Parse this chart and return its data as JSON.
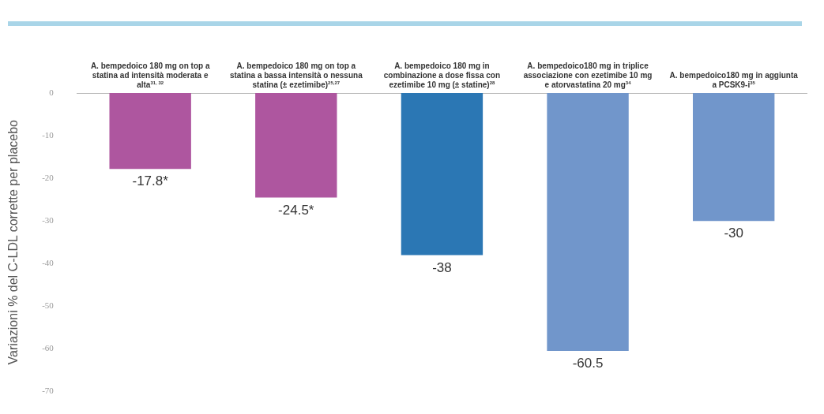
{
  "chart_data": {
    "type": "bar",
    "ylabel": "Variazioni % del C-LDL corrette per placebo",
    "categories": [
      "A. bempedoico 180 mg on top a statina ad intensità moderata e alta$^{31, 32}$",
      "A. bempedoico 180 mg on top a statina a bassa intensità o nessuna statina (± ezetimibe)$^{25,27}$",
      "A. bempedoico 180 mg in combinazione a dose fissa con ezetimibe 10 mg (± statine)$^{28}$",
      "A. bempedoico180 mg in triplice associazione con ezetimibe 10 mg e atorvastatina 20 mg$^{34}$",
      "A. bempedoico180 mg in aggiunta a PCSK9-i$^{35}$"
    ],
    "values": [
      -17.8,
      -24.5,
      -38,
      -60.5,
      -30
    ],
    "colors": [
      "#ae569f",
      "#ae569f",
      "#2b77b4",
      "#7196cb",
      "#7196cb"
    ],
    "value_labels": [
      "-17.8*",
      "-24.5*",
      "-38",
      "-60.5",
      "-30"
    ],
    "ylim": [
      -70,
      0
    ],
    "yticks": [
      0,
      -10,
      -20,
      -30,
      -40,
      -50,
      -60,
      -70
    ],
    "grid": false,
    "legend": false
  }
}
